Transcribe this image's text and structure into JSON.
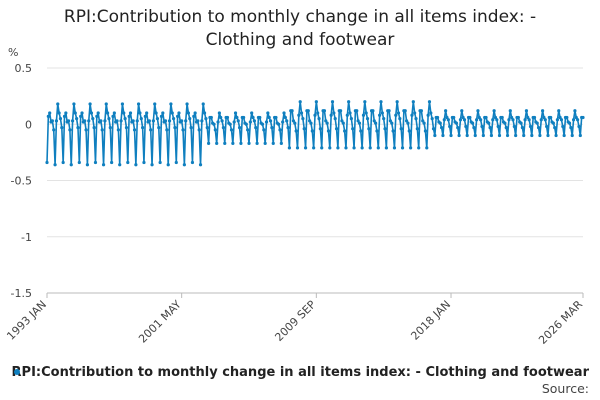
{
  "chart_data": {
    "type": "line",
    "title_lines": [
      "RPI:Contribution to monthly change in all items index: -",
      "Clothing and footwear"
    ],
    "ylabel": "%",
    "ylim": [
      -1.5,
      0.5
    ],
    "yticks": [
      {
        "value": 0.5,
        "label": "0.5"
      },
      {
        "value": 0,
        "label": "0"
      },
      {
        "value": -0.5,
        "label": "-0.5"
      },
      {
        "value": -1,
        "label": "-1"
      },
      {
        "value": -1.5,
        "label": "-1.5"
      }
    ],
    "xrange": [
      "1993-01",
      "2026-03"
    ],
    "xticks": [
      {
        "date": "1993-01",
        "label": "1993 JAN"
      },
      {
        "date": "2001-05",
        "label": "2001 MAY"
      },
      {
        "date": "2009-09",
        "label": "2009 SEP"
      },
      {
        "date": "2018-01",
        "label": "2018 JAN"
      },
      {
        "date": "2026-03",
        "label": "2026 MAR"
      }
    ],
    "grid": true,
    "legend_position": "bottom-right",
    "series_color": "#0f7fbf",
    "series": [
      {
        "name": "RPI:Contribution to monthly change in all items index: - Clothing and footwear",
        "pattern_by_era": [
          {
            "from_year": 1993,
            "to_year": 2002,
            "monthly_values": [
              -0.34,
              0.07,
              0.1,
              0.02,
              0.03,
              -0.05,
              -0.36,
              0.03,
              0.18,
              0.1,
              0.05,
              -0.03
            ]
          },
          {
            "from_year": 2003,
            "to_year": 2007,
            "monthly_values": [
              -0.17,
              0.06,
              0.06,
              0.01,
              0.0,
              -0.05,
              -0.17,
              0.02,
              0.1,
              0.06,
              0.03,
              -0.03
            ]
          },
          {
            "from_year": 2008,
            "to_year": 2016,
            "monthly_values": [
              -0.21,
              0.12,
              0.12,
              0.03,
              0.01,
              -0.06,
              -0.21,
              0.08,
              0.2,
              0.1,
              0.05,
              -0.04
            ]
          },
          {
            "from_year": 2017,
            "to_year": 2026,
            "monthly_values": [
              -0.1,
              0.06,
              0.06,
              0.02,
              0.01,
              -0.03,
              -0.1,
              0.04,
              0.12,
              0.06,
              0.04,
              -0.02
            ]
          }
        ]
      }
    ]
  },
  "legend": {
    "label": "RPI:Contribution to monthly change in all items index: - Clothing and footwear"
  },
  "source": {
    "label": "Source:"
  }
}
